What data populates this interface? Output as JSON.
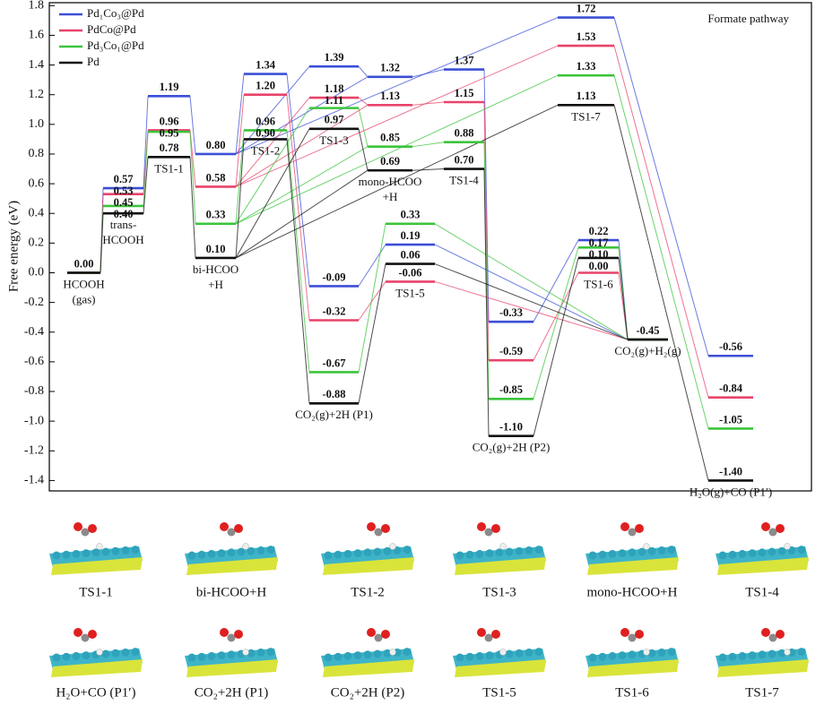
{
  "chart_data": {
    "type": "energy-profile",
    "ylabel": "Free energy (eV)",
    "annotation": "Formate pathway",
    "legend": "upper left",
    "ylim": [
      -1.47,
      1.82
    ],
    "yticks": [
      1.8,
      1.6,
      1.4,
      1.2,
      {
        "value": 1,
        "label": "1.0"
      },
      0.8,
      0.6,
      0.4,
      0.2,
      {
        "value": 0,
        "label": "0.0"
      },
      -0.2,
      -0.4,
      -0.6,
      -0.8,
      {
        "value": -1,
        "label": "-1.0"
      },
      -1.2,
      -1.4
    ],
    "categories": [
      [
        "HCOOH",
        "(gas)"
      ],
      [
        "trans-",
        "HCOOH"
      ],
      "TS1-1",
      [
        "bi-HCOO",
        "+H"
      ],
      "TS1-2",
      "CO₂(g)+2H (P1)",
      "TS1-3",
      [
        "mono-HCOO",
        "+H"
      ],
      "TS1-4",
      "TS1-5",
      "CO₂(g)+2H (P2)",
      "TS1-6",
      "CO₂(g)+H₂(g)",
      "TS1-7",
      "H₂O(g)+CO (P1′)"
    ],
    "series": [
      {
        "name": "Pd₁Co₃@Pd",
        "color": "#3b4fd6",
        "values": [
          0,
          0.57,
          1.19,
          0.8,
          1.34,
          -0.09,
          1.39,
          1.32,
          1.37,
          0.19,
          -0.33,
          0.22,
          -0.45,
          1.72,
          -0.56
        ],
        "value_labels": [
          null,
          "0.57",
          "1.19",
          "0.80",
          "1.34",
          "-0.09",
          "1.39",
          "1.32",
          "1.37",
          "0.19",
          "-0.33",
          "0.22",
          null,
          "1.72",
          "-0.56"
        ]
      },
      {
        "name": "PdCo@Pd",
        "color": "#e8436a",
        "values": [
          0,
          0.53,
          0.96,
          0.58,
          1.2,
          -0.32,
          1.18,
          1.13,
          1.15,
          -0.06,
          -0.59,
          0.0,
          -0.45,
          1.53,
          -0.84
        ],
        "value_labels": [
          null,
          "0.53",
          "0.96",
          "0.58",
          "1.20",
          "-0.32",
          "1.18",
          "1.13",
          "1.15",
          "-0.06",
          "-0.59",
          "0.00",
          null,
          "1.53",
          "-0.84"
        ]
      },
      {
        "name": "Pd₃Co₁@Pd",
        "color": "#3cc43c",
        "values": [
          0,
          0.45,
          0.95,
          0.33,
          0.96,
          -0.67,
          1.11,
          0.85,
          0.88,
          0.33,
          -0.85,
          0.17,
          -0.45,
          1.33,
          -1.05
        ],
        "value_labels": [
          null,
          "0.45",
          "0.95",
          "0.33",
          "0.96",
          "-0.67",
          "1.11",
          "0.85",
          "0.88",
          "0.33",
          "-0.85",
          "0.17",
          null,
          "1.33",
          "-1.05"
        ]
      },
      {
        "name": "Pd",
        "color": "#111111",
        "values": [
          0,
          0.4,
          0.78,
          0.1,
          0.9,
          -0.88,
          0.97,
          0.69,
          0.7,
          0.06,
          -1.1,
          0.1,
          -0.45,
          1.13,
          -1.4
        ],
        "value_labels": [
          "0.00",
          "0.40",
          "0.78",
          "0.10",
          "0.90",
          "-0.88",
          "0.97",
          "0.69",
          "0.70",
          "0.06",
          "-1.10",
          "0.10",
          "-0.45",
          "1.13",
          "-1.40"
        ]
      }
    ]
  },
  "structures": {
    "row1": [
      "TS1-1",
      "bi-HCOO+H",
      "TS1-2",
      "TS1-3",
      "mono-HCOO+H",
      "TS1-4"
    ],
    "row2": [
      "H₂O+CO (P1′)",
      "CO₂+2H (P1)",
      "CO₂+2H (P2)",
      "TS1-5",
      "TS1-6",
      "TS1-7"
    ]
  }
}
